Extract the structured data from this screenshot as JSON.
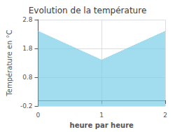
{
  "chart_data": {
    "type": "area",
    "title": "Evolution de la température",
    "x": [
      0,
      1,
      2
    ],
    "values": [
      2.4,
      1.4,
      2.4
    ],
    "xlim": [
      0,
      2
    ],
    "ylim": [
      -0.2,
      2.8
    ],
    "xticks": [
      0,
      1,
      2
    ],
    "yticks": [
      -0.2,
      0.8,
      1.8,
      2.8
    ],
    "xlabel": "heure par heure",
    "ylabel": "Température en °C",
    "color": "#7acde8",
    "line_style": "dotted",
    "grid": true
  }
}
